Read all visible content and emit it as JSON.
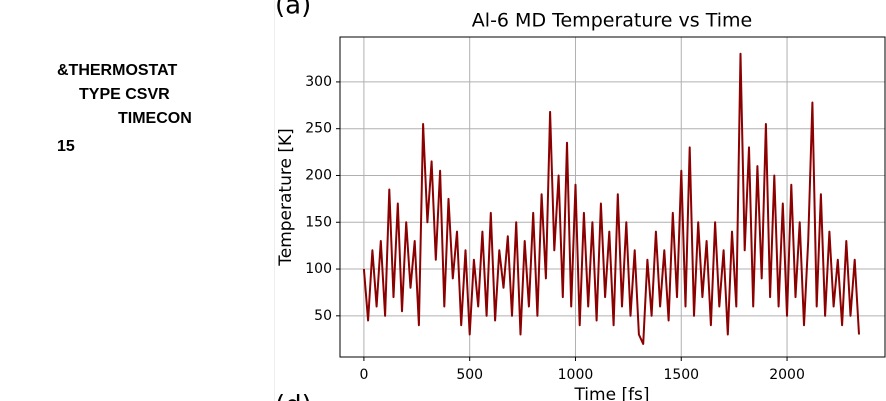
{
  "side_text": [
    "&THERMOSTAT",
    "TYPE CSVR",
    "TIMECON",
    "15"
  ],
  "panel_labels": [
    "(a)",
    "(d)"
  ],
  "chart_data": {
    "type": "line",
    "title": "Al-6 MD Temperature vs Time",
    "x_label": "Time [fs]",
    "y_label": "Temperature [K]",
    "xlim": [
      -113,
      2463
    ],
    "ylim": [
      6,
      348
    ],
    "xticks": [
      0,
      500,
      1000,
      1500,
      2000
    ],
    "yticks": [
      50,
      100,
      150,
      200,
      250,
      300
    ],
    "grid": true,
    "series": [
      {
        "name": "Temperature",
        "color": "#8b0000",
        "x": [
          0,
          20,
          40,
          60,
          80,
          100,
          120,
          140,
          160,
          180,
          200,
          220,
          240,
          260,
          280,
          300,
          320,
          340,
          360,
          380,
          400,
          420,
          440,
          460,
          480,
          500,
          520,
          540,
          560,
          580,
          600,
          620,
          640,
          660,
          680,
          700,
          720,
          740,
          760,
          780,
          800,
          820,
          840,
          860,
          880,
          900,
          920,
          940,
          960,
          980,
          1000,
          1020,
          1040,
          1060,
          1080,
          1100,
          1120,
          1140,
          1160,
          1180,
          1200,
          1220,
          1240,
          1260,
          1280,
          1300,
          1320,
          1340,
          1360,
          1380,
          1400,
          1420,
          1440,
          1460,
          1480,
          1500,
          1520,
          1540,
          1560,
          1580,
          1600,
          1620,
          1640,
          1660,
          1680,
          1700,
          1720,
          1740,
          1760,
          1780,
          1800,
          1820,
          1840,
          1860,
          1880,
          1900,
          1920,
          1940,
          1960,
          1980,
          2000,
          2020,
          2040,
          2060,
          2080,
          2100,
          2120,
          2140,
          2160,
          2180,
          2200,
          2220,
          2240,
          2260,
          2280,
          2300,
          2320,
          2340
        ],
        "values": [
          100,
          45,
          120,
          60,
          130,
          50,
          185,
          70,
          170,
          55,
          150,
          80,
          130,
          40,
          255,
          150,
          215,
          110,
          205,
          60,
          175,
          90,
          140,
          40,
          120,
          30,
          110,
          60,
          140,
          50,
          160,
          45,
          120,
          80,
          135,
          50,
          150,
          30,
          130,
          60,
          160,
          50,
          180,
          90,
          268,
          120,
          200,
          70,
          235,
          60,
          190,
          40,
          160,
          60,
          150,
          45,
          170,
          70,
          140,
          40,
          180,
          60,
          150,
          50,
          120,
          30,
          20,
          110,
          50,
          140,
          60,
          120,
          45,
          160,
          70,
          205,
          60,
          230,
          50,
          150,
          70,
          130,
          40,
          150,
          60,
          120,
          30,
          140,
          60,
          330,
          120,
          230,
          60,
          210,
          90,
          255,
          70,
          200,
          60,
          170,
          50,
          190,
          70,
          150,
          40,
          130,
          278,
          60,
          180,
          50,
          140,
          60,
          110,
          40,
          130,
          50,
          110,
          30
        ]
      }
    ]
  }
}
